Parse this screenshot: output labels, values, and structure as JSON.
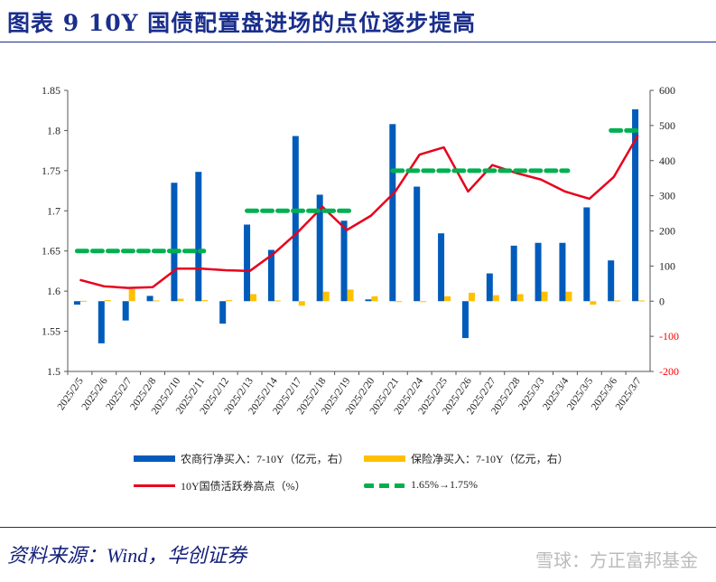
{
  "title": "图表 9   10Y 国债配置盘进场的点位逐步提高",
  "source": "资料来源：Wind，华创证券",
  "watermark": "雪球：方正富邦基金",
  "chart_data": {
    "type": "bar+line",
    "title": "",
    "categories": [
      "2025/2/5",
      "2025/2/6",
      "2025/2/7",
      "2025/2/8",
      "2025/2/10",
      "2025/2/11",
      "2025/2/12",
      "2025/2/13",
      "2025/2/14",
      "2025/2/17",
      "2025/2/18",
      "2025/2/19",
      "2025/2/20",
      "2025/2/21",
      "2025/2/24",
      "2025/2/25",
      "2025/2/26",
      "2025/2/27",
      "2025/2/28",
      "2025/3/3",
      "2025/3/4",
      "2025/3/5",
      "2025/3/6",
      "2025/3/7"
    ],
    "left_axis": {
      "range": [
        1.5,
        1.85
      ],
      "ticks": [
        1.5,
        1.55,
        1.6,
        1.65,
        1.7,
        1.75,
        1.8,
        1.85
      ],
      "tick_labels": [
        "1.5",
        "1.55",
        "1.6",
        "1.65",
        "1.7",
        "1.75",
        "1.8",
        "1.85"
      ]
    },
    "right_axis": {
      "range": [
        -200,
        600
      ],
      "ticks": [
        -200,
        -100,
        0,
        100,
        200,
        300,
        400,
        500,
        600
      ],
      "tick_labels": [
        "-200",
        "-100",
        "0",
        "100",
        "200",
        "300",
        "400",
        "500",
        "600"
      ],
      "negative_color": "#ff0000"
    },
    "series": [
      {
        "name": "农商行净买入：7-10Y（亿元，右）",
        "type": "bar",
        "axis": "right",
        "color": "#005bbb",
        "values": [
          -10,
          -120,
          -55,
          15,
          337,
          368,
          -64,
          218,
          146,
          470,
          303,
          229,
          5,
          504,
          326,
          193,
          -105,
          79,
          158,
          166,
          166,
          267,
          116,
          546
        ]
      },
      {
        "name": "保险净买入：7-10Y（亿元，右）",
        "type": "bar",
        "axis": "right",
        "color": "#ffc000",
        "values": [
          1,
          3,
          34,
          2,
          7,
          3,
          3,
          20,
          2,
          -13,
          27,
          33,
          14,
          -2,
          -2,
          14,
          24,
          17,
          20,
          27,
          27,
          -10,
          2,
          2
        ]
      },
      {
        "name": "10Y国债活跃券高点（%）",
        "type": "line",
        "axis": "left",
        "color": "#e8001c",
        "values": [
          1.614,
          1.606,
          1.604,
          1.605,
          1.628,
          1.628,
          1.626,
          1.625,
          1.647,
          1.674,
          1.705,
          1.676,
          1.694,
          1.724,
          1.77,
          1.779,
          1.724,
          1.757,
          1.747,
          1.739,
          1.724,
          1.715,
          1.742,
          1.794
        ]
      },
      {
        "name": "1.65%→1.75%",
        "type": "dashed-segments",
        "axis": "left",
        "color": "#00b050",
        "segments": [
          {
            "from": "2025/2/5",
            "to": "2025/2/11",
            "value": 1.65
          },
          {
            "from": "2025/2/13",
            "to": "2025/2/19",
            "value": 1.7
          },
          {
            "from": "2025/2/21",
            "to": "2025/3/4",
            "value": 1.75
          },
          {
            "from": "2025/3/6",
            "to": "2025/3/7",
            "value": 1.8
          }
        ]
      }
    ],
    "legend": "bottom",
    "grid": false
  }
}
